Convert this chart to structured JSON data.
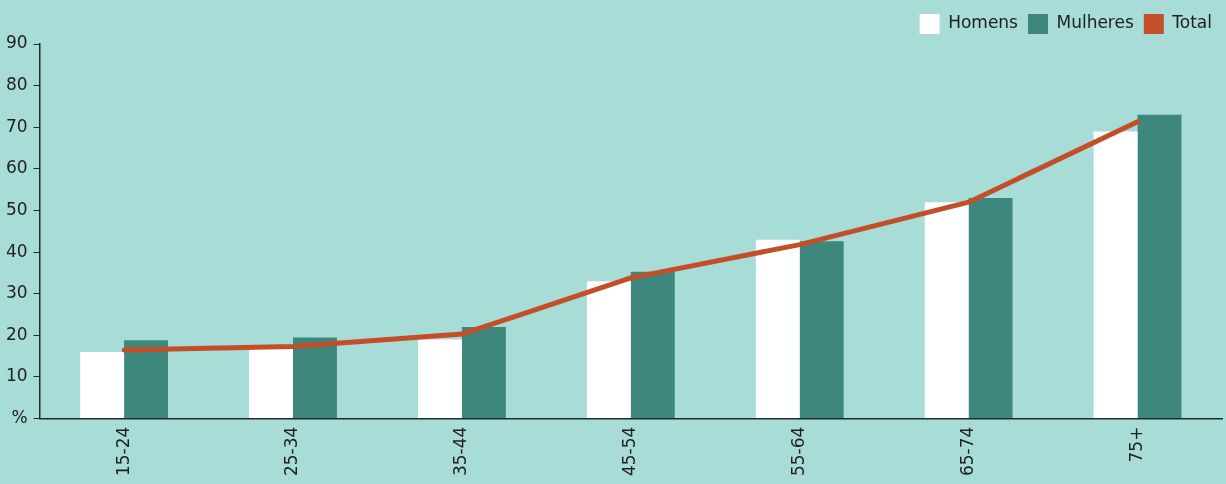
{
  "chart_data": {
    "type": "bar",
    "categories": [
      "15-24",
      "25-34",
      "35-44",
      "45-54",
      "55-64",
      "65-74",
      "75+"
    ],
    "series": [
      {
        "name": "Homens",
        "color": "#ffffff",
        "values": [
          16,
          17,
          19,
          33,
          43,
          52,
          69
        ]
      },
      {
        "name": "Mulheres",
        "color": "#3d877d",
        "values": [
          18.8,
          19.5,
          22,
          35.3,
          42.6,
          53,
          73
        ]
      },
      {
        "name": "Total",
        "type": "line",
        "color": "#c44e27",
        "values": [
          16.5,
          17.3,
          20.3,
          33.8,
          41.8,
          52,
          71.3
        ]
      }
    ],
    "ylim": [
      0,
      90
    ],
    "yticks": [
      {
        "value": 0,
        "label": "%"
      },
      10,
      20,
      30,
      40,
      50,
      60,
      70,
      80,
      90
    ],
    "grid": false,
    "legend": "top right",
    "marker": "none"
  }
}
